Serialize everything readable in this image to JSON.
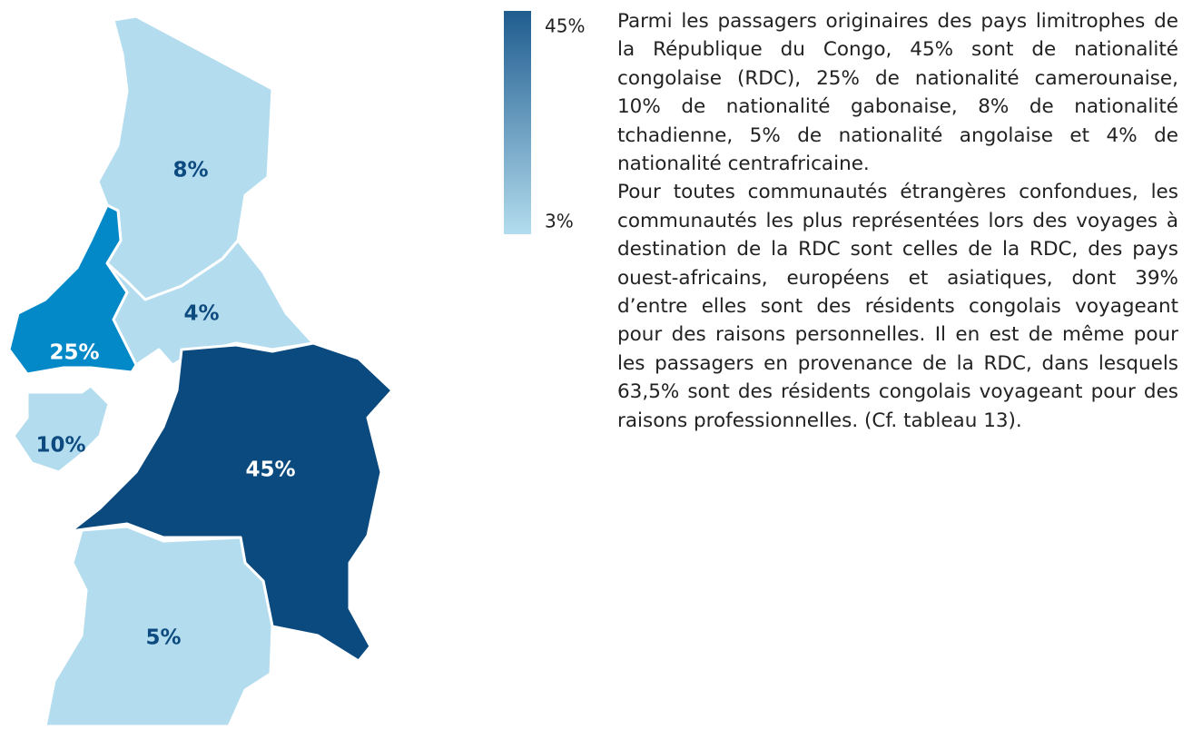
{
  "chart_data": {
    "type": "map",
    "value_labels": [
      "8%",
      "4%",
      "25%",
      "10%",
      "45%",
      "5%"
    ],
    "values": [
      8,
      4,
      25,
      10,
      45,
      5
    ],
    "colors": [
      "#b3dcee",
      "#b3dcee",
      "#0489c8",
      "#b3dcee",
      "#0a4a7e",
      "#b3dcee"
    ],
    "colorlim": [
      3,
      45
    ],
    "colorticks": [
      {
        "value": 45,
        "label": "45%"
      },
      {
        "value": 3,
        "label": "3%"
      }
    ],
    "scale_colors": [
      "#b3dcee",
      "#1f5c8f"
    ]
  },
  "text": {
    "paragraphs": [
      "Parmi les passagers originaires des pays limitrophes de la République du Congo, 45% sont de nationalité congolaise (RDC), 25% de nationalité camerounaise, 10% de nationalité gabonaise, 8% de nationalité tchadienne, 5% de nationalité angolaise et 4% de nationalité centrafricaine.",
      "Pour toutes communautés étrangères confondues, les communautés les plus représentées lors des voyages à destination de la RDC sont celles de la RDC, des pays ouest-africains, européens et asiatiques, dont 39% d’entre elles sont des résidents congolais voyageant pour des raisons personnelles. Il en est de même pour les passagers en provenance de la RDC, dans lesquels 63,5% sont des résidents congolais voyageant pour des raisons professionnelles. (Cf. tableau 13)."
    ]
  }
}
